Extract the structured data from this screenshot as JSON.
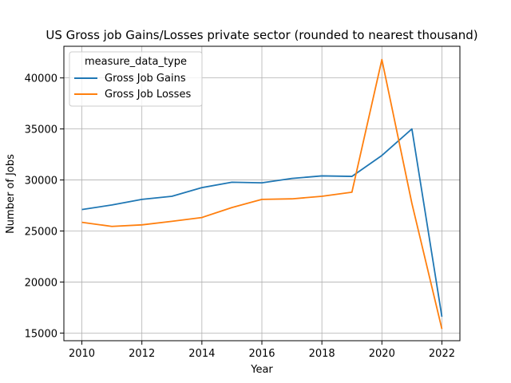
{
  "chart_data": {
    "type": "line",
    "title": "US Gross job Gains/Losses private sector (rounded to nearest thousand)",
    "xlabel": "Year",
    "ylabel": "Number of Jobs",
    "xlim": [
      2009.4,
      2022.6
    ],
    "ylim": [
      14250,
      43100
    ],
    "xticks": [
      2010,
      2012,
      2014,
      2016,
      2018,
      2020,
      2022
    ],
    "yticks": [
      15000,
      20000,
      25000,
      30000,
      35000,
      40000
    ],
    "grid": true,
    "legend": {
      "title": "measure_data_type",
      "placement": "top-left"
    },
    "series": [
      {
        "name": "Gross Job Gains",
        "color": "#1f77b4",
        "x": [
          2010,
          2011,
          2012,
          2013,
          2014,
          2015,
          2016,
          2017,
          2018,
          2019,
          2020,
          2021,
          2022
        ],
        "y": [
          27100,
          27550,
          28100,
          28400,
          29250,
          29780,
          29720,
          30150,
          30400,
          30350,
          32400,
          35000,
          16600
        ]
      },
      {
        "name": "Gross Job Losses",
        "color": "#ff7f0e",
        "x": [
          2010,
          2011,
          2012,
          2013,
          2014,
          2015,
          2016,
          2017,
          2018,
          2019,
          2020,
          2021,
          2022
        ],
        "y": [
          25850,
          25450,
          25600,
          25950,
          26320,
          27300,
          28100,
          28150,
          28400,
          28800,
          41800,
          27700,
          15400
        ]
      }
    ]
  }
}
